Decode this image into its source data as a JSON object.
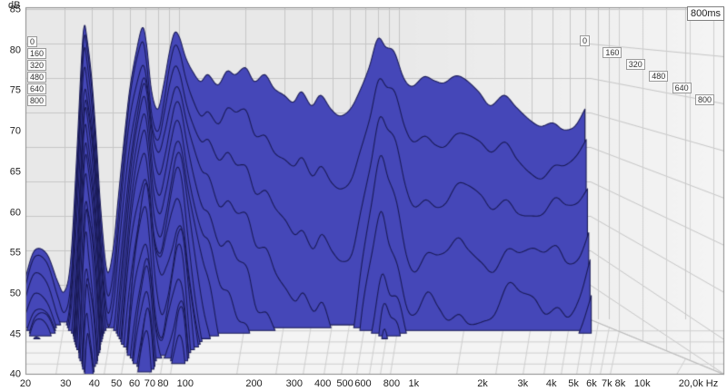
{
  "window": {
    "range_badge": "800ms",
    "db_axis_unit": "dB"
  },
  "colors": {
    "plot_bg": "#e8e8e8",
    "floor_bg": "#f4f4f4",
    "grid_line": "#c6c6c6",
    "floor_line": "#cfcfcf",
    "frame": "#8a8a8a",
    "surface_fill": "#4547b8",
    "surface_stroke": "#191a55"
  },
  "time_axis": {
    "left_labels": [
      "0",
      "160",
      "320",
      "480",
      "640",
      "800"
    ],
    "right_labels": [
      "0",
      "160",
      "320",
      "480",
      "640",
      "800"
    ]
  },
  "chart_data": {
    "type": "waterfall",
    "title": "",
    "xlabel": "Hz",
    "ylabel": "dB",
    "zlabel": "ms",
    "x_scale": "log",
    "x_range": [
      20,
      20000
    ],
    "y_range_db": [
      40,
      85
    ],
    "time_range_ms": [
      0,
      800
    ],
    "time_step_ms": 40,
    "grid": true,
    "db_ticks": [
      85,
      80,
      75,
      70,
      65,
      60,
      55,
      50,
      45,
      40
    ],
    "freq_ticks": [
      {
        "f": 20,
        "label": "20"
      },
      {
        "f": 30,
        "label": "30"
      },
      {
        "f": 40,
        "label": "40"
      },
      {
        "f": 50,
        "label": "50"
      },
      {
        "f": 60,
        "label": "60"
      },
      {
        "f": 70,
        "label": "70"
      },
      {
        "f": 80,
        "label": "80"
      },
      {
        "f": 100,
        "label": "100"
      },
      {
        "f": 200,
        "label": "200"
      },
      {
        "f": 300,
        "label": "300"
      },
      {
        "f": 400,
        "label": "400"
      },
      {
        "f": 500,
        "label": "500"
      },
      {
        "f": 600,
        "label": "600"
      },
      {
        "f": 800,
        "label": "800"
      },
      {
        "f": 1000,
        "label": "1k"
      },
      {
        "f": 2000,
        "label": "2k"
      },
      {
        "f": 3000,
        "label": "3k"
      },
      {
        "f": 4000,
        "label": "4k"
      },
      {
        "f": 5000,
        "label": "5k"
      },
      {
        "f": 6000,
        "label": "6k"
      },
      {
        "f": 7000,
        "label": "7k"
      },
      {
        "f": 8000,
        "label": "8k"
      },
      {
        "f": 10000,
        "label": "10k"
      },
      {
        "f": 20000,
        "label": "20,0k Hz"
      }
    ],
    "grid_freqs": [
      30,
      40,
      50,
      60,
      70,
      80,
      90,
      100,
      200,
      300,
      400,
      500,
      600,
      700,
      800,
      900,
      1000,
      2000,
      3000,
      4000,
      5000,
      6000,
      7000,
      8000,
      9000,
      10000,
      20000
    ],
    "points_f_spl_decay": [
      [
        20,
        46,
        3.6
      ],
      [
        22,
        50,
        3.8
      ],
      [
        25,
        49.5,
        3.9
      ],
      [
        28,
        45.5,
        4.0
      ],
      [
        30,
        44,
        4.2
      ],
      [
        32,
        48,
        4.5
      ],
      [
        34,
        62,
        4.8
      ],
      [
        36,
        78,
        4.9
      ],
      [
        37,
        82.5,
        4.9
      ],
      [
        38,
        81,
        4.9
      ],
      [
        40,
        75,
        4.8
      ],
      [
        42,
        66,
        4.8
      ],
      [
        44,
        56,
        5.2
      ],
      [
        47,
        47,
        6.0
      ],
      [
        50,
        50,
        6.2
      ],
      [
        53,
        58,
        5.8
      ],
      [
        57,
        68,
        5.4
      ],
      [
        60,
        74,
        5.2
      ],
      [
        64,
        79,
        5.1
      ],
      [
        68,
        82.3,
        5.1
      ],
      [
        71,
        80,
        5.2
      ],
      [
        75,
        73,
        5.4
      ],
      [
        80,
        70.5,
        5.6
      ],
      [
        85,
        74,
        5.8
      ],
      [
        90,
        78.5,
        6.0
      ],
      [
        95,
        81.5,
        6.0
      ],
      [
        100,
        81,
        6.2
      ],
      [
        107,
        78,
        7.5
      ],
      [
        115,
        76,
        9
      ],
      [
        125,
        74.5,
        10.5
      ],
      [
        135,
        75.5,
        12
      ],
      [
        150,
        74,
        14
      ],
      [
        165,
        76,
        15
      ],
      [
        180,
        75.5,
        16
      ],
      [
        200,
        76.5,
        17
      ],
      [
        220,
        74.5,
        19
      ],
      [
        245,
        75.5,
        20
      ],
      [
        270,
        73.5,
        21
      ],
      [
        300,
        72.5,
        22
      ],
      [
        330,
        71.5,
        23
      ],
      [
        360,
        73,
        24
      ],
      [
        400,
        71,
        25
      ],
      [
        440,
        72.5,
        25
      ],
      [
        490,
        70.5,
        26
      ],
      [
        540,
        69.5,
        26
      ],
      [
        600,
        70.5,
        25
      ],
      [
        660,
        73,
        20
      ],
      [
        730,
        76.5,
        17
      ],
      [
        800,
        80.7,
        15
      ],
      [
        870,
        79.5,
        16
      ],
      [
        950,
        78.8,
        17
      ],
      [
        1050,
        75,
        19
      ],
      [
        1150,
        73.8,
        20
      ],
      [
        1300,
        75.2,
        20
      ],
      [
        1450,
        74.6,
        21
      ],
      [
        1600,
        74.3,
        21
      ],
      [
        1800,
        75.3,
        20
      ],
      [
        2000,
        74.8,
        20
      ],
      [
        2300,
        73,
        19
      ],
      [
        2600,
        71,
        18
      ],
      [
        3000,
        72.5,
        17
      ],
      [
        3400,
        70.8,
        17
      ],
      [
        3900,
        69,
        16
      ],
      [
        4400,
        68,
        16
      ],
      [
        5000,
        68.5,
        15
      ],
      [
        5600,
        67.5,
        15
      ],
      [
        6300,
        68,
        14
      ],
      [
        7000,
        70.5,
        13
      ]
    ],
    "decay_unit": "dB per 100ms",
    "notes": "spl values are the t=0 slice; each later slice = spl - decay*t/100, floor-clipped at 40 dB"
  }
}
